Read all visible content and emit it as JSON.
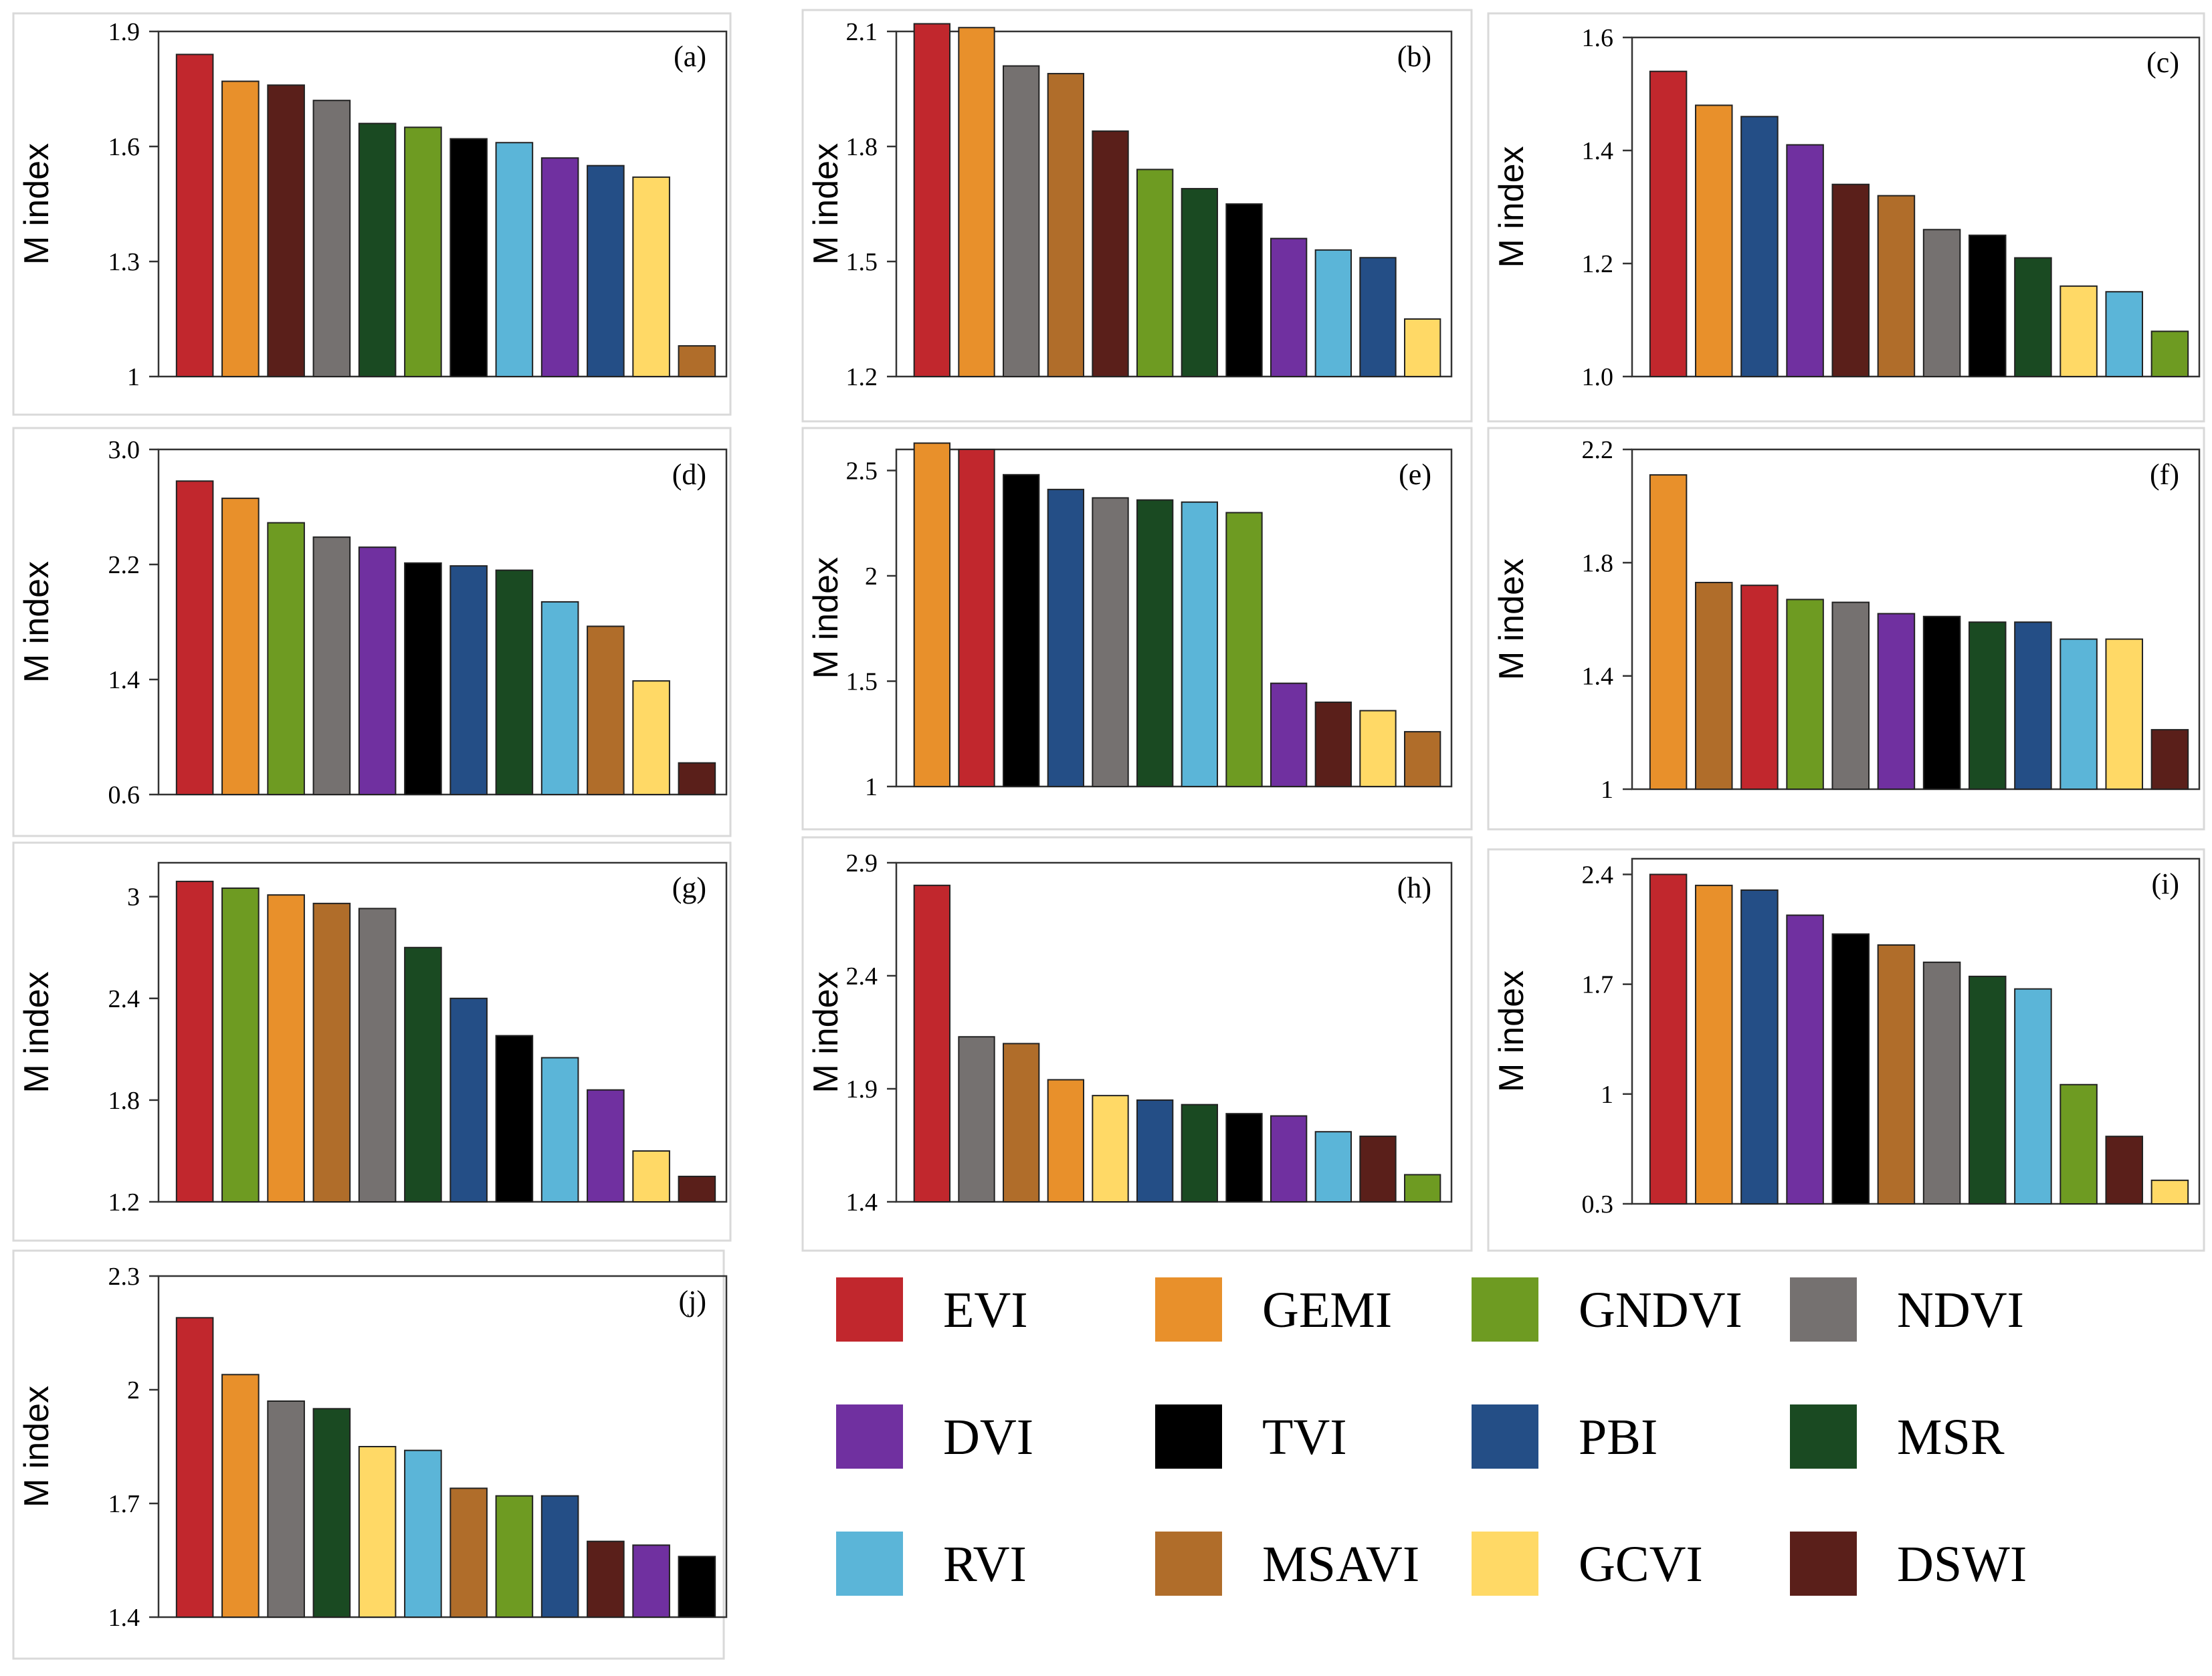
{
  "colors": {
    "EVI": "#C1272D",
    "GEMI": "#E8902B",
    "GNDVI": "#6E9B22",
    "NDVI": "#757170",
    "DVI": "#7030A0",
    "TVI": "#000000",
    "PBI": "#244E86",
    "MSR": "#1A4A22",
    "RVI": "#5BB5D8",
    "MSAVI": "#B06D2A",
    "GCVI": "#FFD966",
    "DSWI": "#5A1F1A"
  },
  "legend": [
    "EVI",
    "GEMI",
    "GNDVI",
    "NDVI",
    "DVI",
    "TVI",
    "PBI",
    "MSR",
    "RVI",
    "MSAVI",
    "GCVI",
    "DSWI"
  ],
  "chart_data": [
    {
      "type": "bar",
      "panel_label": "(a)",
      "ylabel": "M index",
      "ylim": [
        1,
        1.9
      ],
      "yticks": [
        "1",
        "1.3",
        "1.6",
        "1.9"
      ],
      "categories": [
        "EVI",
        "GEMI",
        "DSWI",
        "NDVI",
        "MSR",
        "GNDVI",
        "TVI",
        "RVI",
        "DVI",
        "PBI",
        "GCVI",
        "MSAVI"
      ],
      "values": [
        1.84,
        1.77,
        1.76,
        1.72,
        1.66,
        1.65,
        1.62,
        1.61,
        1.57,
        1.55,
        1.52,
        1.08
      ]
    },
    {
      "type": "bar",
      "panel_label": "(b)",
      "ylabel": "M index",
      "ylim": [
        1.2,
        2.1
      ],
      "yticks": [
        "1.2",
        "1.5",
        "1.8",
        "2.1"
      ],
      "categories": [
        "EVI",
        "GEMI",
        "NDVI",
        "MSAVI",
        "DSWI",
        "GNDVI",
        "MSR",
        "TVI",
        "DVI",
        "RVI",
        "PBI",
        "GCVI"
      ],
      "values": [
        2.12,
        2.11,
        2.01,
        1.99,
        1.84,
        1.74,
        1.69,
        1.65,
        1.56,
        1.53,
        1.51,
        1.35
      ]
    },
    {
      "type": "bar",
      "panel_label": "(c)",
      "ylabel": "M index",
      "ylim": [
        1.0,
        1.6
      ],
      "yticks": [
        "1.0",
        "1.2",
        "1.4",
        "1.6"
      ],
      "categories": [
        "EVI",
        "GEMI",
        "PBI",
        "DVI",
        "DSWI",
        "MSAVI",
        "NDVI",
        "TVI",
        "MSR",
        "GCVI",
        "RVI",
        "GNDVI"
      ],
      "values": [
        1.54,
        1.48,
        1.46,
        1.41,
        1.34,
        1.32,
        1.26,
        1.25,
        1.21,
        1.16,
        1.15,
        1.08
      ]
    },
    {
      "type": "bar",
      "panel_label": "(d)",
      "ylabel": "M index",
      "ylim": [
        0.6,
        3.0
      ],
      "yticks": [
        "0.6",
        "1.4",
        "2.2",
        "3.0"
      ],
      "categories": [
        "EVI",
        "GEMI",
        "GNDVI",
        "NDVI",
        "DVI",
        "TVI",
        "PBI",
        "MSR",
        "RVI",
        "MSAVI",
        "GCVI",
        "DSWI"
      ],
      "values": [
        2.78,
        2.66,
        2.49,
        2.39,
        2.32,
        2.21,
        2.19,
        2.16,
        1.94,
        1.77,
        1.39,
        0.82
      ]
    },
    {
      "type": "bar",
      "panel_label": "(e)",
      "ylabel": "M index",
      "ylim": [
        1,
        2.6
      ],
      "yticks": [
        "1",
        "1.5",
        "2",
        "2.5"
      ],
      "categories": [
        "GEMI",
        "EVI",
        "TVI",
        "PBI",
        "NDVI",
        "MSR",
        "RVI",
        "GNDVI",
        "DVI",
        "DSWI",
        "GCVI",
        "MSAVI"
      ],
      "values": [
        2.63,
        2.6,
        2.48,
        2.41,
        2.37,
        2.36,
        2.35,
        2.3,
        1.49,
        1.4,
        1.36,
        1.26
      ]
    },
    {
      "type": "bar",
      "panel_label": "(f)",
      "ylabel": "M index",
      "ylim": [
        1,
        2.2
      ],
      "yticks": [
        "1",
        "1.4",
        "1.8",
        "2.2"
      ],
      "categories": [
        "GEMI",
        "MSAVI",
        "EVI",
        "GNDVI",
        "NDVI",
        "DVI",
        "TVI",
        "MSR",
        "PBI",
        "RVI",
        "GCVI",
        "DSWI"
      ],
      "values": [
        2.11,
        1.73,
        1.72,
        1.67,
        1.66,
        1.62,
        1.61,
        1.59,
        1.59,
        1.53,
        1.53,
        1.21
      ]
    },
    {
      "type": "bar",
      "panel_label": "(g)",
      "ylabel": "M index",
      "ylim": [
        1.2,
        3.2
      ],
      "yticks": [
        "1.2",
        "1.8",
        "2.4",
        "3"
      ],
      "categories": [
        "EVI",
        "GNDVI",
        "GEMI",
        "MSAVI",
        "NDVI",
        "MSR",
        "PBI",
        "TVI",
        "RVI",
        "DVI",
        "GCVI",
        "DSWI"
      ],
      "values": [
        3.09,
        3.05,
        3.01,
        2.96,
        2.93,
        2.7,
        2.4,
        2.18,
        2.05,
        1.86,
        1.5,
        1.35
      ]
    },
    {
      "type": "bar",
      "panel_label": "(h)",
      "ylabel": "M index",
      "ylim": [
        1.4,
        2.9
      ],
      "yticks": [
        "1.4",
        "1.9",
        "2.4",
        "2.9"
      ],
      "categories": [
        "EVI",
        "NDVI",
        "MSAVI",
        "GEMI",
        "GCVI",
        "PBI",
        "MSR",
        "TVI",
        "DVI",
        "RVI",
        "DSWI",
        "GNDVI"
      ],
      "values": [
        2.8,
        2.13,
        2.1,
        1.94,
        1.87,
        1.85,
        1.83,
        1.79,
        1.78,
        1.71,
        1.69,
        1.52
      ]
    },
    {
      "type": "bar",
      "panel_label": "(i)",
      "ylabel": "M index",
      "ylim": [
        0.3,
        2.5
      ],
      "yticks": [
        "0.3",
        "1",
        "1.7",
        "2.4"
      ],
      "categories": [
        "EVI",
        "GEMI",
        "PBI",
        "DVI",
        "TVI",
        "MSAVI",
        "NDVI",
        "MSR",
        "RVI",
        "GNDVI",
        "DSWI",
        "GCVI"
      ],
      "values": [
        2.4,
        2.33,
        2.3,
        2.14,
        2.02,
        1.95,
        1.84,
        1.75,
        1.67,
        1.06,
        0.73,
        0.45
      ]
    },
    {
      "type": "bar",
      "panel_label": "(j)",
      "ylabel": "M index",
      "ylim": [
        1.4,
        2.3
      ],
      "yticks": [
        "1.4",
        "1.7",
        "2",
        "2.3"
      ],
      "categories": [
        "EVI",
        "GEMI",
        "NDVI",
        "MSR",
        "GCVI",
        "RVI",
        "MSAVI",
        "GNDVI",
        "PBI",
        "DSWI",
        "DVI",
        "TVI"
      ],
      "values": [
        2.19,
        2.04,
        1.97,
        1.95,
        1.85,
        1.84,
        1.74,
        1.72,
        1.72,
        1.6,
        1.59,
        1.56
      ]
    }
  ]
}
